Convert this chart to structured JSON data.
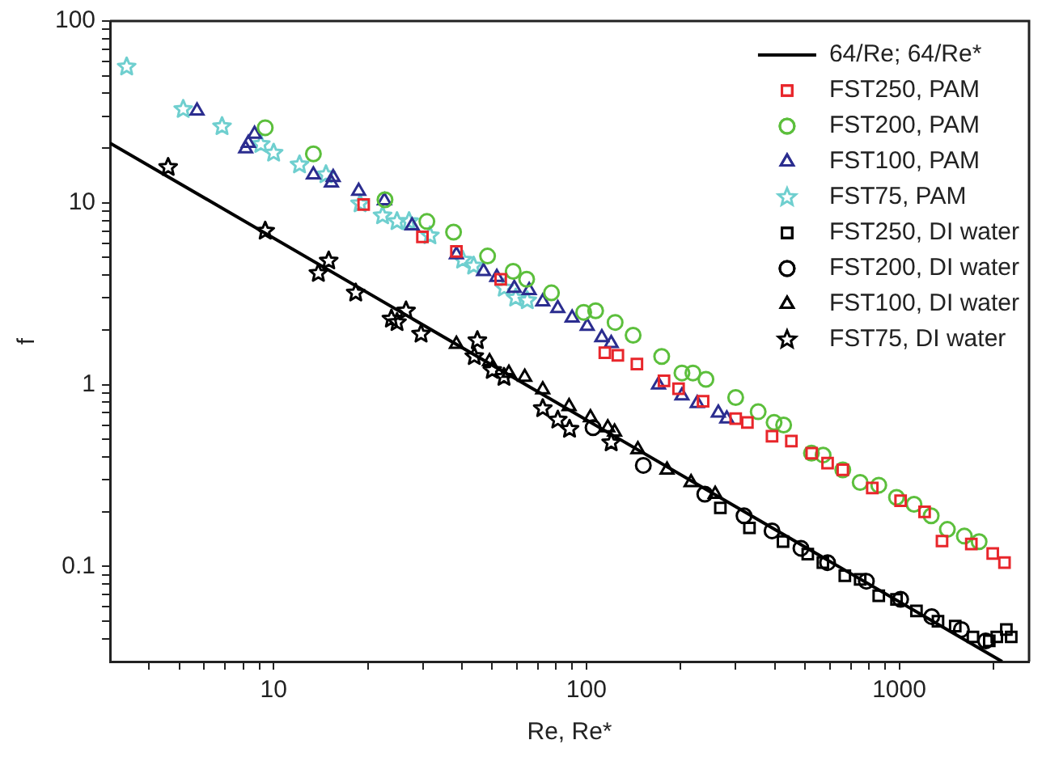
{
  "chart_data": {
    "type": "scatter",
    "xlabel": "Re, Re*",
    "ylabel": "f",
    "log": "xy",
    "grid": false,
    "legend": "top right",
    "xlim": [
      3,
      2600
    ],
    "ylim": [
      0.03,
      100
    ],
    "xticks": [
      {
        "value": 4,
        "label": null
      },
      {
        "value": 5,
        "label": null
      },
      {
        "value": 6,
        "label": null
      },
      {
        "value": 7,
        "label": null
      },
      {
        "value": 8,
        "label": null
      },
      {
        "value": 9,
        "label": null
      },
      10,
      {
        "value": 20,
        "label": null
      },
      {
        "value": 30,
        "label": null
      },
      {
        "value": 40,
        "label": null
      },
      {
        "value": 50,
        "label": null
      },
      {
        "value": 60,
        "label": null
      },
      {
        "value": 70,
        "label": null
      },
      {
        "value": 80,
        "label": null
      },
      {
        "value": 90,
        "label": null
      },
      100,
      {
        "value": 200,
        "label": null
      },
      {
        "value": 300,
        "label": null
      },
      {
        "value": 400,
        "label": null
      },
      {
        "value": 500,
        "label": null
      },
      {
        "value": 600,
        "label": null
      },
      {
        "value": 700,
        "label": null
      },
      {
        "value": 800,
        "label": null
      },
      {
        "value": 900,
        "label": null
      },
      1000,
      {
        "value": 2000,
        "label": null
      }
    ],
    "yticks": [
      {
        "value": 0.04,
        "label": null
      },
      {
        "value": 0.05,
        "label": null
      },
      {
        "value": 0.06,
        "label": null
      },
      {
        "value": 0.07,
        "label": null
      },
      {
        "value": 0.08,
        "label": null
      },
      {
        "value": 0.09,
        "label": null
      },
      0.1,
      {
        "value": 0.2,
        "label": null
      },
      {
        "value": 0.3,
        "label": null
      },
      {
        "value": 0.4,
        "label": null
      },
      {
        "value": 0.5,
        "label": null
      },
      {
        "value": 0.6,
        "label": null
      },
      {
        "value": 0.7,
        "label": null
      },
      {
        "value": 0.8,
        "label": null
      },
      {
        "value": 0.9,
        "label": null
      },
      1,
      {
        "value": 2,
        "label": null
      },
      {
        "value": 3,
        "label": null
      },
      {
        "value": 4,
        "label": null
      },
      {
        "value": 5,
        "label": null
      },
      {
        "value": 6,
        "label": null
      },
      {
        "value": 7,
        "label": null
      },
      {
        "value": 8,
        "label": null
      },
      {
        "value": 9,
        "label": null
      },
      10,
      {
        "value": 20,
        "label": null
      },
      {
        "value": 30,
        "label": null
      },
      {
        "value": 40,
        "label": null
      },
      {
        "value": 50,
        "label": null
      },
      {
        "value": 60,
        "label": null
      },
      {
        "value": 70,
        "label": null
      },
      {
        "value": 80,
        "label": null
      },
      {
        "value": 90,
        "label": null
      },
      100
    ],
    "series": [
      {
        "name": "64/Re; 64/Re*",
        "type": "line",
        "color": "#000000",
        "marker": "none",
        "line_style": "solid",
        "x": [
          3,
          2133
        ],
        "values": [
          21.33,
          0.03
        ]
      },
      {
        "name": "FST250, PAM",
        "color": "#e8262b",
        "marker": "square",
        "x": [
          19.4,
          29.9,
          38.4,
          53.2,
          114.5,
          126,
          145,
          177,
          197,
          236,
          300,
          327,
          392,
          452,
          525,
          590,
          660,
          820,
          1010,
          1205,
          1370,
          1700,
          1990,
          2170
        ],
        "values": [
          9.8,
          6.5,
          5.4,
          3.8,
          1.5,
          1.45,
          1.3,
          1.05,
          0.95,
          0.81,
          0.65,
          0.62,
          0.52,
          0.49,
          0.42,
          0.37,
          0.34,
          0.27,
          0.23,
          0.2,
          0.138,
          0.133,
          0.118,
          0.105
        ]
      },
      {
        "name": "FST200, PAM",
        "color": "#5cbf3c",
        "marker": "circle",
        "x": [
          9.4,
          13.4,
          22.7,
          30.9,
          37.6,
          48.3,
          58.3,
          64.4,
          77.3,
          98,
          107,
          123.5,
          141,
          174,
          202,
          219,
          241,
          300,
          354,
          398,
          427,
          524,
          571,
          660,
          750,
          860,
          980,
          1115,
          1265,
          1425,
          1615,
          1800
        ],
        "values": [
          25.9,
          18.6,
          10.4,
          7.9,
          6.9,
          5.1,
          4.2,
          3.8,
          3.2,
          2.5,
          2.55,
          2.2,
          1.87,
          1.43,
          1.16,
          1.16,
          1.07,
          0.85,
          0.71,
          0.62,
          0.6,
          0.42,
          0.41,
          0.34,
          0.29,
          0.28,
          0.24,
          0.22,
          0.19,
          0.16,
          0.147,
          0.137
        ]
      },
      {
        "name": "FST100, PAM",
        "color": "#2b2d8f",
        "marker": "triangle",
        "x": [
          5.69,
          8.14,
          8.3,
          8.69,
          13.4,
          15.3,
          15.5,
          18.7,
          22.6,
          27.7,
          38.4,
          46.9,
          51.7,
          58.8,
          65.6,
          72.5,
          81,
          90,
          100.6,
          112,
          120,
          170,
          202,
          226,
          264,
          281
        ],
        "values": [
          32.1,
          19.9,
          21.3,
          23.9,
          14.3,
          12.9,
          13.8,
          11.6,
          10.3,
          7.5,
          5.2,
          4.2,
          3.9,
          3.4,
          3.3,
          2.86,
          2.63,
          2.33,
          2.1,
          1.82,
          1.69,
          1.0,
          0.87,
          0.79,
          0.7,
          0.65
        ]
      },
      {
        "name": "FST75, PAM",
        "color": "#6fcfcf",
        "marker": "star",
        "x": [
          3.39,
          5.14,
          6.84,
          9.1,
          10,
          12.1,
          14.7,
          18.9,
          22.3,
          24.8,
          27.1,
          31.6,
          40.2,
          43.6,
          54.6,
          59.4,
          64.7
        ],
        "values": [
          56,
          32.7,
          26.3,
          21,
          18.8,
          16.2,
          14.3,
          9.9,
          8.5,
          7.9,
          7.9,
          6.6,
          4.85,
          4.5,
          3.4,
          3.0,
          2.9
        ]
      },
      {
        "name": "FST250, DI water",
        "color": "#000000",
        "marker": "square",
        "x": [
          268,
          332,
          425,
          510,
          570,
          670,
          750,
          860,
          980,
          1135,
          1330,
          1510,
          1720,
          1940,
          2050,
          2200,
          2280
        ],
        "values": [
          0.21,
          0.163,
          0.137,
          0.117,
          0.105,
          0.089,
          0.085,
          0.069,
          0.066,
          0.057,
          0.05,
          0.047,
          0.041,
          0.039,
          0.041,
          0.045,
          0.041
        ]
      },
      {
        "name": "FST200, DI water",
        "color": "#000000",
        "marker": "circle",
        "x": [
          105,
          152,
          239,
          319,
          392,
          485,
          590,
          785,
          1010,
          1270,
          1580,
          1890
        ],
        "values": [
          0.58,
          0.36,
          0.25,
          0.19,
          0.157,
          0.126,
          0.105,
          0.083,
          0.066,
          0.053,
          0.045,
          0.039
        ]
      },
      {
        "name": "FST100, DI water",
        "color": "#000000",
        "marker": "triangle",
        "x": [
          38.4,
          49,
          56.5,
          63.5,
          72.5,
          88,
          103,
          117,
          123,
          146,
          181,
          216,
          258
        ],
        "values": [
          1.67,
          1.34,
          1.16,
          1.1,
          0.94,
          0.76,
          0.66,
          0.58,
          0.55,
          0.44,
          0.34,
          0.29,
          0.25
        ]
      },
      {
        "name": "FST75, DI water",
        "color": "#000000",
        "marker": "star",
        "x": [
          4.6,
          9.4,
          13.9,
          15,
          18.3,
          23.8,
          24.8,
          26.5,
          29.6,
          43.8,
          44.8,
          50,
          54.5,
          72.5,
          81,
          88.3,
          120
        ],
        "values": [
          15.7,
          7.0,
          4.1,
          4.8,
          3.2,
          2.3,
          2.2,
          2.55,
          1.9,
          1.43,
          1.75,
          1.2,
          1.1,
          0.74,
          0.64,
          0.57,
          0.48
        ]
      }
    ]
  }
}
